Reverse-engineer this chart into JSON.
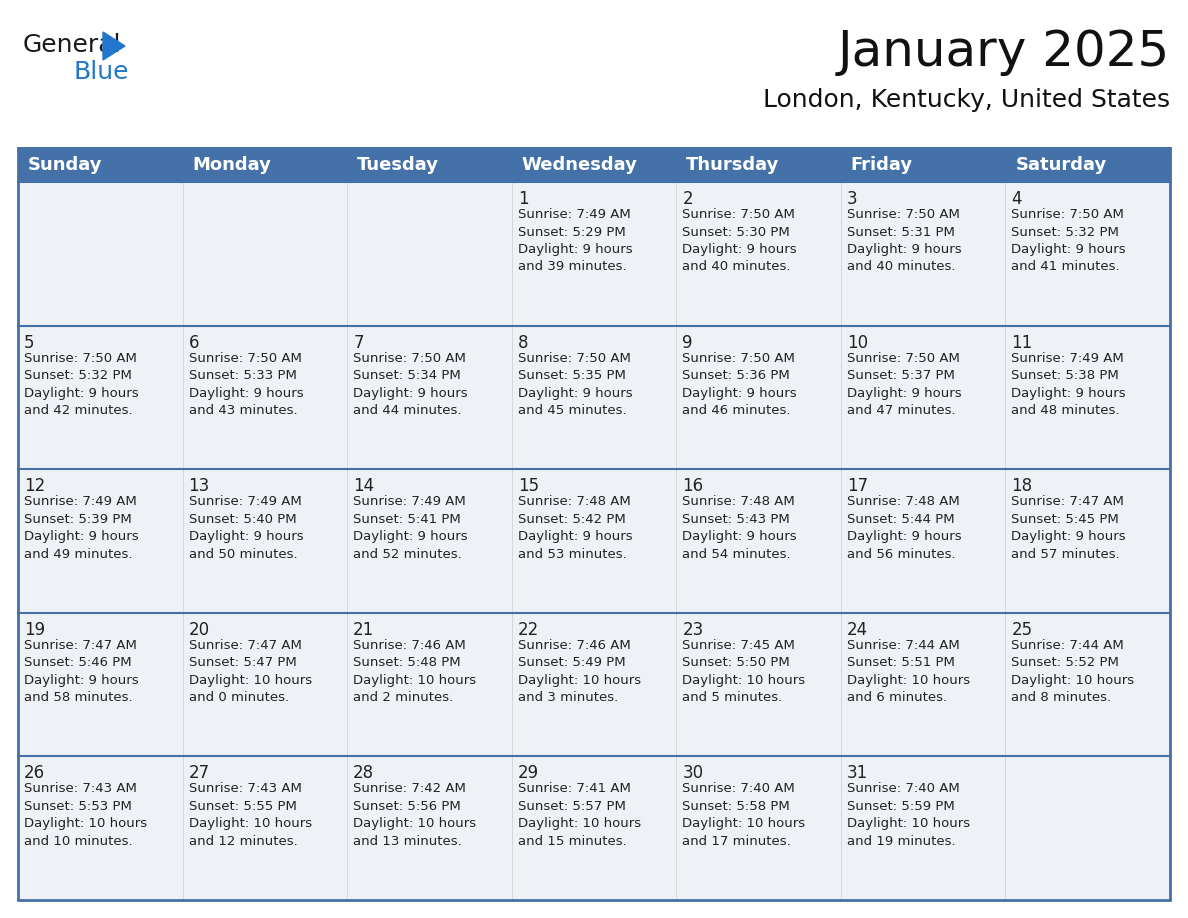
{
  "title": "January 2025",
  "subtitle": "London, Kentucky, United States",
  "header_bg": "#4472a8",
  "header_text_color": "#ffffff",
  "cell_bg": "#eef2f7",
  "cell_bg_empty_row1": "#eef2f7",
  "border_color": "#4472a8",
  "row_divider_color": "#4472a8",
  "text_color": "#222222",
  "days_of_week": [
    "Sunday",
    "Monday",
    "Tuesday",
    "Wednesday",
    "Thursday",
    "Friday",
    "Saturday"
  ],
  "weeks": [
    [
      {
        "day": "",
        "info": ""
      },
      {
        "day": "",
        "info": ""
      },
      {
        "day": "",
        "info": ""
      },
      {
        "day": "1",
        "info": "Sunrise: 7:49 AM\nSunset: 5:29 PM\nDaylight: 9 hours\nand 39 minutes."
      },
      {
        "day": "2",
        "info": "Sunrise: 7:50 AM\nSunset: 5:30 PM\nDaylight: 9 hours\nand 40 minutes."
      },
      {
        "day": "3",
        "info": "Sunrise: 7:50 AM\nSunset: 5:31 PM\nDaylight: 9 hours\nand 40 minutes."
      },
      {
        "day": "4",
        "info": "Sunrise: 7:50 AM\nSunset: 5:32 PM\nDaylight: 9 hours\nand 41 minutes."
      }
    ],
    [
      {
        "day": "5",
        "info": "Sunrise: 7:50 AM\nSunset: 5:32 PM\nDaylight: 9 hours\nand 42 minutes."
      },
      {
        "day": "6",
        "info": "Sunrise: 7:50 AM\nSunset: 5:33 PM\nDaylight: 9 hours\nand 43 minutes."
      },
      {
        "day": "7",
        "info": "Sunrise: 7:50 AM\nSunset: 5:34 PM\nDaylight: 9 hours\nand 44 minutes."
      },
      {
        "day": "8",
        "info": "Sunrise: 7:50 AM\nSunset: 5:35 PM\nDaylight: 9 hours\nand 45 minutes."
      },
      {
        "day": "9",
        "info": "Sunrise: 7:50 AM\nSunset: 5:36 PM\nDaylight: 9 hours\nand 46 minutes."
      },
      {
        "day": "10",
        "info": "Sunrise: 7:50 AM\nSunset: 5:37 PM\nDaylight: 9 hours\nand 47 minutes."
      },
      {
        "day": "11",
        "info": "Sunrise: 7:49 AM\nSunset: 5:38 PM\nDaylight: 9 hours\nand 48 minutes."
      }
    ],
    [
      {
        "day": "12",
        "info": "Sunrise: 7:49 AM\nSunset: 5:39 PM\nDaylight: 9 hours\nand 49 minutes."
      },
      {
        "day": "13",
        "info": "Sunrise: 7:49 AM\nSunset: 5:40 PM\nDaylight: 9 hours\nand 50 minutes."
      },
      {
        "day": "14",
        "info": "Sunrise: 7:49 AM\nSunset: 5:41 PM\nDaylight: 9 hours\nand 52 minutes."
      },
      {
        "day": "15",
        "info": "Sunrise: 7:48 AM\nSunset: 5:42 PM\nDaylight: 9 hours\nand 53 minutes."
      },
      {
        "day": "16",
        "info": "Sunrise: 7:48 AM\nSunset: 5:43 PM\nDaylight: 9 hours\nand 54 minutes."
      },
      {
        "day": "17",
        "info": "Sunrise: 7:48 AM\nSunset: 5:44 PM\nDaylight: 9 hours\nand 56 minutes."
      },
      {
        "day": "18",
        "info": "Sunrise: 7:47 AM\nSunset: 5:45 PM\nDaylight: 9 hours\nand 57 minutes."
      }
    ],
    [
      {
        "day": "19",
        "info": "Sunrise: 7:47 AM\nSunset: 5:46 PM\nDaylight: 9 hours\nand 58 minutes."
      },
      {
        "day": "20",
        "info": "Sunrise: 7:47 AM\nSunset: 5:47 PM\nDaylight: 10 hours\nand 0 minutes."
      },
      {
        "day": "21",
        "info": "Sunrise: 7:46 AM\nSunset: 5:48 PM\nDaylight: 10 hours\nand 2 minutes."
      },
      {
        "day": "22",
        "info": "Sunrise: 7:46 AM\nSunset: 5:49 PM\nDaylight: 10 hours\nand 3 minutes."
      },
      {
        "day": "23",
        "info": "Sunrise: 7:45 AM\nSunset: 5:50 PM\nDaylight: 10 hours\nand 5 minutes."
      },
      {
        "day": "24",
        "info": "Sunrise: 7:44 AM\nSunset: 5:51 PM\nDaylight: 10 hours\nand 6 minutes."
      },
      {
        "day": "25",
        "info": "Sunrise: 7:44 AM\nSunset: 5:52 PM\nDaylight: 10 hours\nand 8 minutes."
      }
    ],
    [
      {
        "day": "26",
        "info": "Sunrise: 7:43 AM\nSunset: 5:53 PM\nDaylight: 10 hours\nand 10 minutes."
      },
      {
        "day": "27",
        "info": "Sunrise: 7:43 AM\nSunset: 5:55 PM\nDaylight: 10 hours\nand 12 minutes."
      },
      {
        "day": "28",
        "info": "Sunrise: 7:42 AM\nSunset: 5:56 PM\nDaylight: 10 hours\nand 13 minutes."
      },
      {
        "day": "29",
        "info": "Sunrise: 7:41 AM\nSunset: 5:57 PM\nDaylight: 10 hours\nand 15 minutes."
      },
      {
        "day": "30",
        "info": "Sunrise: 7:40 AM\nSunset: 5:58 PM\nDaylight: 10 hours\nand 17 minutes."
      },
      {
        "day": "31",
        "info": "Sunrise: 7:40 AM\nSunset: 5:59 PM\nDaylight: 10 hours\nand 19 minutes."
      },
      {
        "day": "",
        "info": ""
      }
    ]
  ],
  "logo_general_color": "#1a1a1a",
  "logo_blue_color": "#2277cc",
  "title_fontsize": 36,
  "subtitle_fontsize": 18,
  "header_fontsize": 13,
  "day_num_fontsize": 12,
  "info_fontsize": 9.5
}
